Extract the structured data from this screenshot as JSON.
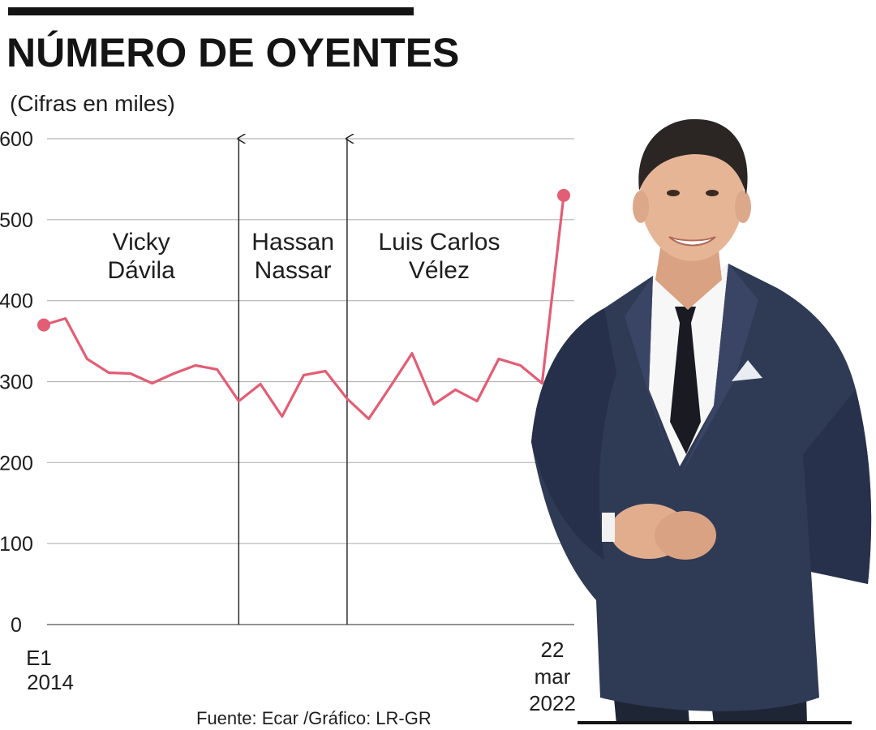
{
  "chart_data": {
    "type": "line",
    "title": "NÚMERO DE OYENTES",
    "subtitle": "(Cifras en miles)",
    "ylim": [
      0,
      600
    ],
    "yticks": [
      0,
      100,
      200,
      300,
      400,
      500,
      600
    ],
    "grid": true,
    "x_start_label": [
      "E1",
      "2014"
    ],
    "x_end_label": [
      "22",
      "mar",
      "2022"
    ],
    "series": [
      {
        "color": "#e35d74",
        "values": [
          370,
          378,
          328,
          311,
          310,
          298,
          310,
          320,
          315,
          276,
          297,
          257,
          308,
          313,
          279,
          254,
          294,
          335,
          272,
          290,
          276,
          328,
          320,
          298,
          530
        ]
      }
    ],
    "periods": [
      {
        "label": [
          "Vicky",
          "Dávila"
        ],
        "start_index": 0,
        "end_index": 8
      },
      {
        "label": [
          "Hassan",
          "Nassar"
        ],
        "start_index": 9,
        "end_index": 13
      },
      {
        "label": [
          "Luis Carlos",
          "Vélez"
        ],
        "start_index": 14,
        "end_index": 24
      }
    ],
    "annotations": [
      "Fuente: Ecar /Gráfico: LR-GR"
    ]
  },
  "colors": {
    "line": "#e35d74",
    "grid": "#b4b4b4",
    "text": "#1e1e1e",
    "suit": "#2f3a55",
    "skin": "#e5b596",
    "hair": "#2b2623"
  },
  "photo": {
    "icon": "presenter-photo"
  }
}
